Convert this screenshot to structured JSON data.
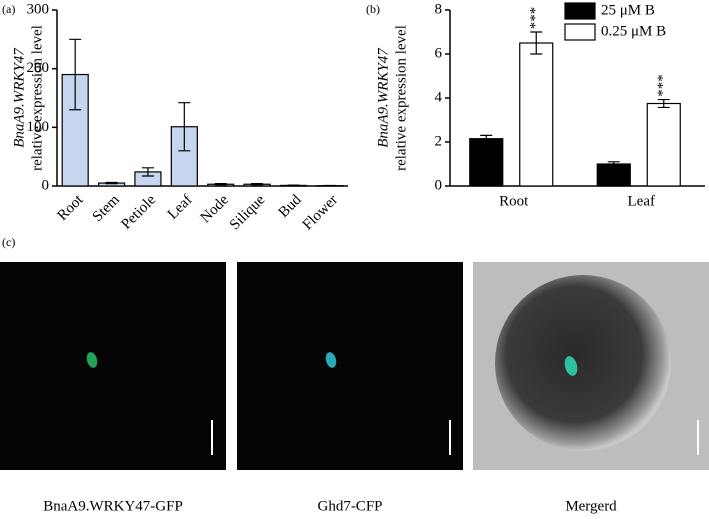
{
  "panels": {
    "a": "(a)",
    "b": "(b)",
    "c": "(c)"
  },
  "chart_data": [
    {
      "type": "bar",
      "ylabel": [
        "BnaA9.WRKY47",
        "relative expression level"
      ],
      "categories": [
        "Root",
        "Stem",
        "Petiole",
        "Leaf",
        "Node",
        "Silique",
        "Bud",
        "Flower"
      ],
      "series": [
        {
          "color": "#c6d6ef",
          "values": [
            190,
            5,
            24,
            101,
            3,
            3,
            1,
            0.5
          ],
          "errors": [
            60,
            1,
            7,
            41,
            1,
            1,
            0.5,
            0.3
          ]
        }
      ],
      "ylim": [
        0,
        300
      ],
      "yticks": [
        0,
        100,
        200,
        300
      ]
    },
    {
      "type": "grouped_bar",
      "ylabel": [
        "BnaA9.WRKY47",
        "relative expression level"
      ],
      "categories": [
        "Root",
        "Leaf"
      ],
      "series": [
        {
          "name": "25 μM B",
          "color": "#000000",
          "values": [
            2.15,
            1.0
          ],
          "errors": [
            0.15,
            0.1
          ]
        },
        {
          "name": "0.25 μM B",
          "color": "#ffffff",
          "values": [
            6.5,
            3.75
          ],
          "errors": [
            0.5,
            0.18
          ]
        }
      ],
      "annotations": [
        "***",
        "***"
      ],
      "ylim": [
        0,
        8
      ],
      "yticks": [
        0,
        2,
        4,
        6,
        8
      ],
      "legend": "upper right"
    }
  ],
  "images": [
    {
      "caption": "BnaA9.WRKY47-GFP"
    },
    {
      "caption": "Ghd7-CFP"
    },
    {
      "caption": "Mergerd"
    }
  ]
}
